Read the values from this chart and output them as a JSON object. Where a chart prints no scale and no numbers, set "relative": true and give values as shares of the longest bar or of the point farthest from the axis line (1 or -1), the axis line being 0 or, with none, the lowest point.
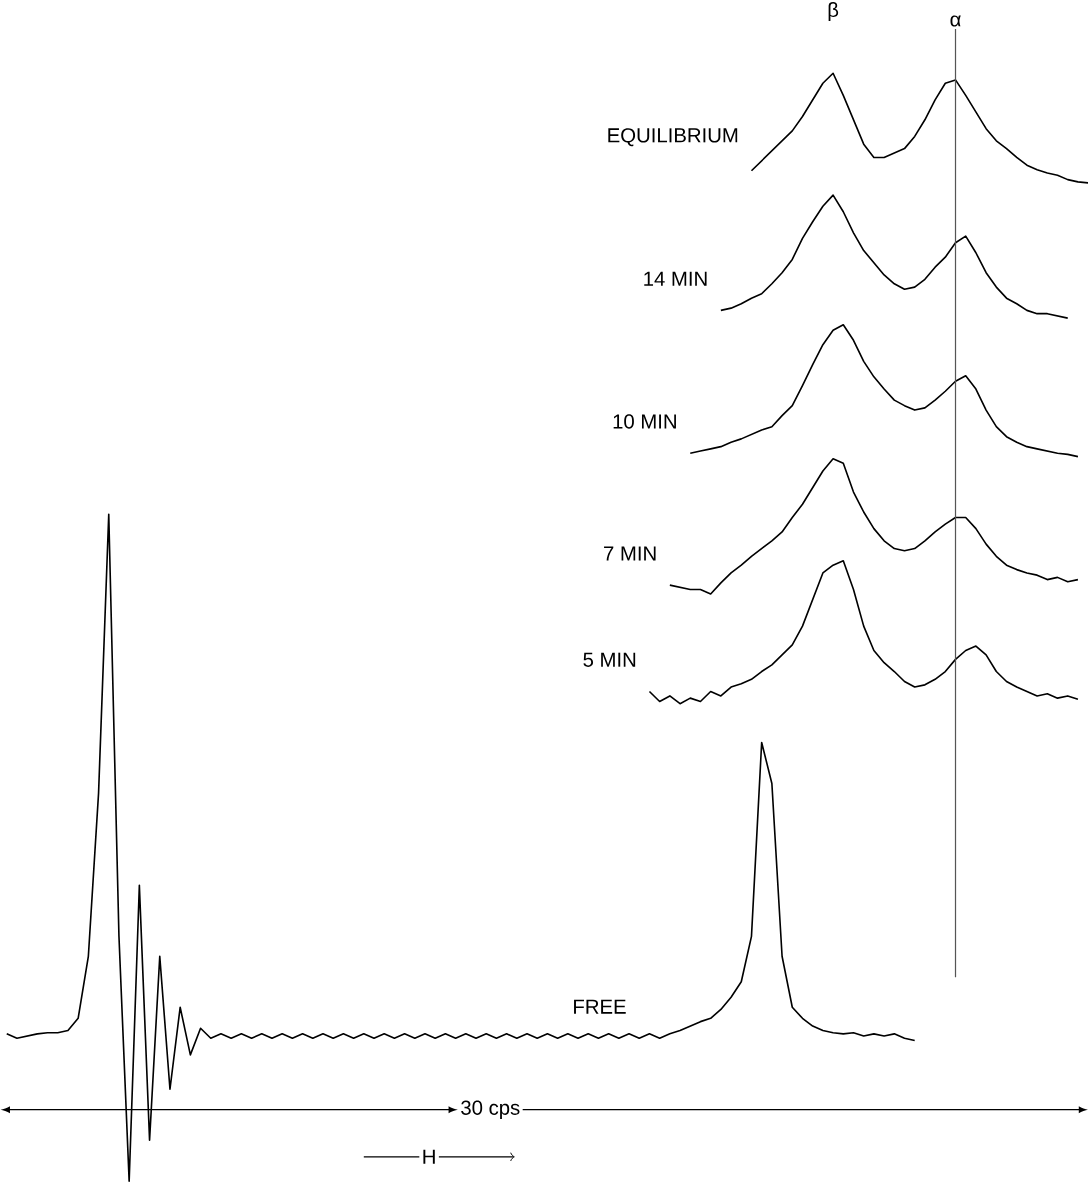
{
  "chart_data": {
    "type": "line",
    "relative": true,
    "categories": [
      null,
      null,
      null,
      null,
      null,
      null,
      null,
      null,
      null,
      null,
      null,
      null,
      null,
      null,
      null,
      null,
      null,
      null,
      null,
      null,
      null,
      null,
      null,
      null,
      null,
      null,
      null,
      null,
      null,
      null,
      null,
      null,
      null,
      null,
      null,
      null,
      null,
      null,
      null,
      null,
      null,
      null,
      null,
      null,
      null,
      null,
      null,
      null,
      null,
      null,
      null,
      null,
      null,
      null,
      null,
      null,
      null,
      null,
      null,
      null,
      null,
      null,
      null,
      null,
      null,
      null,
      null,
      null,
      null,
      null,
      null,
      null,
      null,
      null,
      null,
      null,
      null,
      null,
      null,
      null,
      null,
      null,
      null,
      null,
      null,
      null,
      null,
      null,
      null,
      null,
      null,
      null,
      null,
      null,
      null,
      null,
      null,
      null,
      null,
      null,
      null,
      null,
      null,
      null,
      null,
      null,
      null,
      null,
      null
    ],
    "series": [
      {
        "name": "EQUILIBRIUM",
        "color": "#000000",
        "values": [
          null,
          null,
          null,
          null,
          null,
          null,
          null,
          null,
          null,
          null,
          null,
          null,
          null,
          null,
          null,
          null,
          null,
          null,
          null,
          null,
          null,
          null,
          null,
          null,
          null,
          null,
          null,
          null,
          null,
          null,
          null,
          null,
          null,
          null,
          null,
          null,
          null,
          null,
          null,
          null,
          null,
          null,
          null,
          null,
          null,
          null,
          null,
          null,
          null,
          null,
          null,
          null,
          null,
          null,
          null,
          null,
          null,
          null,
          null,
          null,
          null,
          null,
          null,
          null,
          null,
          null,
          null,
          null,
          null,
          null,
          null,
          null,
          null,
          null,
          null,
          0.912,
          0.921,
          0.93,
          0.939,
          0.948,
          0.961,
          0.976,
          0.991,
          1.0,
          0.98,
          0.958,
          0.936,
          0.924,
          0.924,
          0.928,
          0.932,
          0.943,
          0.958,
          0.976,
          0.991,
          0.994,
          0.98,
          0.965,
          0.95,
          0.939,
          0.932,
          0.924,
          0.917,
          0.913,
          0.91,
          0.908,
          0.904,
          0.902,
          0.901
        ]
      },
      {
        "name": "14 MIN",
        "color": "#000000",
        "values": [
          null,
          null,
          null,
          null,
          null,
          null,
          null,
          null,
          null,
          null,
          null,
          null,
          null,
          null,
          null,
          null,
          null,
          null,
          null,
          null,
          null,
          null,
          null,
          null,
          null,
          null,
          null,
          null,
          null,
          null,
          null,
          null,
          null,
          null,
          null,
          null,
          null,
          null,
          null,
          null,
          null,
          null,
          null,
          null,
          null,
          null,
          null,
          null,
          null,
          null,
          null,
          null,
          null,
          null,
          null,
          null,
          null,
          null,
          null,
          null,
          null,
          null,
          null,
          null,
          null,
          null,
          null,
          null,
          null,
          null,
          null,
          null,
          0.786,
          0.788,
          0.792,
          0.797,
          0.801,
          0.81,
          0.82,
          0.832,
          0.851,
          0.866,
          0.88,
          0.89,
          0.875,
          0.856,
          0.84,
          0.829,
          0.818,
          0.81,
          0.805,
          0.807,
          0.814,
          0.825,
          0.834,
          0.847,
          0.853,
          0.838,
          0.82,
          0.807,
          0.797,
          0.792,
          0.786,
          0.783,
          0.783,
          0.781,
          0.779,
          null,
          null
        ]
      },
      {
        "name": "10 MIN",
        "color": "#000000",
        "values": [
          null,
          null,
          null,
          null,
          null,
          null,
          null,
          null,
          null,
          null,
          null,
          null,
          null,
          null,
          null,
          null,
          null,
          null,
          null,
          null,
          null,
          null,
          null,
          null,
          null,
          null,
          null,
          null,
          null,
          null,
          null,
          null,
          null,
          null,
          null,
          null,
          null,
          null,
          null,
          null,
          null,
          null,
          null,
          null,
          null,
          null,
          null,
          null,
          null,
          null,
          null,
          null,
          null,
          null,
          null,
          null,
          null,
          null,
          null,
          null,
          null,
          null,
          null,
          null,
          null,
          null,
          null,
          null,
          null,
          0.657,
          0.659,
          0.661,
          0.663,
          0.667,
          0.67,
          0.674,
          0.678,
          0.681,
          0.691,
          0.7,
          0.718,
          0.737,
          0.755,
          0.768,
          0.773,
          0.759,
          0.74,
          0.726,
          0.715,
          0.705,
          0.7,
          0.696,
          0.698,
          0.705,
          0.713,
          0.722,
          0.727,
          0.715,
          0.696,
          0.681,
          0.672,
          0.667,
          0.663,
          0.661,
          0.659,
          0.657,
          0.656,
          0.654,
          null
        ]
      },
      {
        "name": "7 MIN",
        "color": "#000000",
        "values": [
          null,
          null,
          null,
          null,
          null,
          null,
          null,
          null,
          null,
          null,
          null,
          null,
          null,
          null,
          null,
          null,
          null,
          null,
          null,
          null,
          null,
          null,
          null,
          null,
          null,
          null,
          null,
          null,
          null,
          null,
          null,
          null,
          null,
          null,
          null,
          null,
          null,
          null,
          null,
          null,
          null,
          null,
          null,
          null,
          null,
          null,
          null,
          null,
          null,
          null,
          null,
          null,
          null,
          null,
          null,
          null,
          null,
          null,
          null,
          null,
          null,
          null,
          null,
          null,
          null,
          null,
          null,
          0.538,
          0.536,
          0.534,
          0.534,
          0.53,
          0.54,
          0.549,
          0.556,
          0.564,
          0.571,
          0.578,
          0.586,
          0.599,
          0.611,
          0.626,
          0.641,
          0.652,
          0.648,
          0.622,
          0.604,
          0.589,
          0.578,
          0.571,
          0.569,
          0.571,
          0.578,
          0.586,
          0.593,
          0.599,
          0.599,
          0.589,
          0.575,
          0.564,
          0.556,
          0.552,
          0.549,
          0.547,
          0.543,
          0.545,
          0.541,
          0.543,
          null
        ]
      },
      {
        "name": "5 MIN",
        "color": "#000000",
        "values": [
          null,
          null,
          null,
          null,
          null,
          null,
          null,
          null,
          null,
          null,
          null,
          null,
          null,
          null,
          null,
          null,
          null,
          null,
          null,
          null,
          null,
          null,
          null,
          null,
          null,
          null,
          null,
          null,
          null,
          null,
          null,
          null,
          null,
          null,
          null,
          null,
          null,
          null,
          null,
          null,
          null,
          null,
          null,
          null,
          null,
          null,
          null,
          null,
          null,
          null,
          null,
          null,
          null,
          null,
          null,
          null,
          null,
          null,
          null,
          null,
          null,
          null,
          null,
          null,
          null,
          0.442,
          0.433,
          0.438,
          0.431,
          0.436,
          0.433,
          0.442,
          0.438,
          0.446,
          0.449,
          0.453,
          0.46,
          0.466,
          0.475,
          0.484,
          0.501,
          0.525,
          0.549,
          0.556,
          0.56,
          0.534,
          0.501,
          0.479,
          0.468,
          0.46,
          0.451,
          0.446,
          0.448,
          0.453,
          0.46,
          0.471,
          0.479,
          0.483,
          0.475,
          0.46,
          0.451,
          0.446,
          0.442,
          0.438,
          0.44,
          0.436,
          0.438,
          0.435,
          null
        ]
      },
      {
        "name": "FREE",
        "color": "#000000",
        "values": [
          null,
          null,
          0.133,
          0.129,
          0.131,
          0.133,
          0.134,
          0.134,
          0.136,
          0.147,
          0.203,
          0.35,
          0.602,
          0.221,
          0.0,
          0.267,
          0.037,
          0.203,
          0.083,
          0.157,
          0.114,
          0.138,
          0.129,
          0.133,
          0.129,
          0.133,
          0.129,
          0.133,
          0.129,
          0.133,
          0.129,
          0.133,
          0.129,
          0.133,
          0.129,
          0.133,
          0.129,
          0.133,
          0.129,
          0.133,
          0.129,
          0.133,
          0.129,
          0.133,
          0.129,
          0.133,
          0.129,
          0.133,
          0.129,
          0.133,
          0.129,
          0.133,
          0.129,
          0.133,
          0.129,
          0.133,
          0.129,
          0.133,
          0.129,
          0.133,
          0.129,
          0.133,
          0.129,
          0.133,
          0.129,
          0.133,
          0.129,
          0.133,
          0.136,
          0.14,
          0.144,
          0.147,
          0.155,
          0.166,
          0.18,
          0.221,
          0.396,
          0.359,
          0.203,
          0.157,
          0.147,
          0.14,
          0.136,
          0.134,
          0.133,
          0.134,
          0.131,
          0.133,
          0.131,
          0.133,
          0.129,
          0.127,
          null,
          null,
          null,
          null,
          null,
          null,
          null,
          null,
          null,
          null,
          null,
          null,
          null,
          null,
          null,
          null,
          null
        ]
      }
    ],
    "annotations": [
      "β",
      "30 cps",
      "H",
      "α"
    ]
  }
}
